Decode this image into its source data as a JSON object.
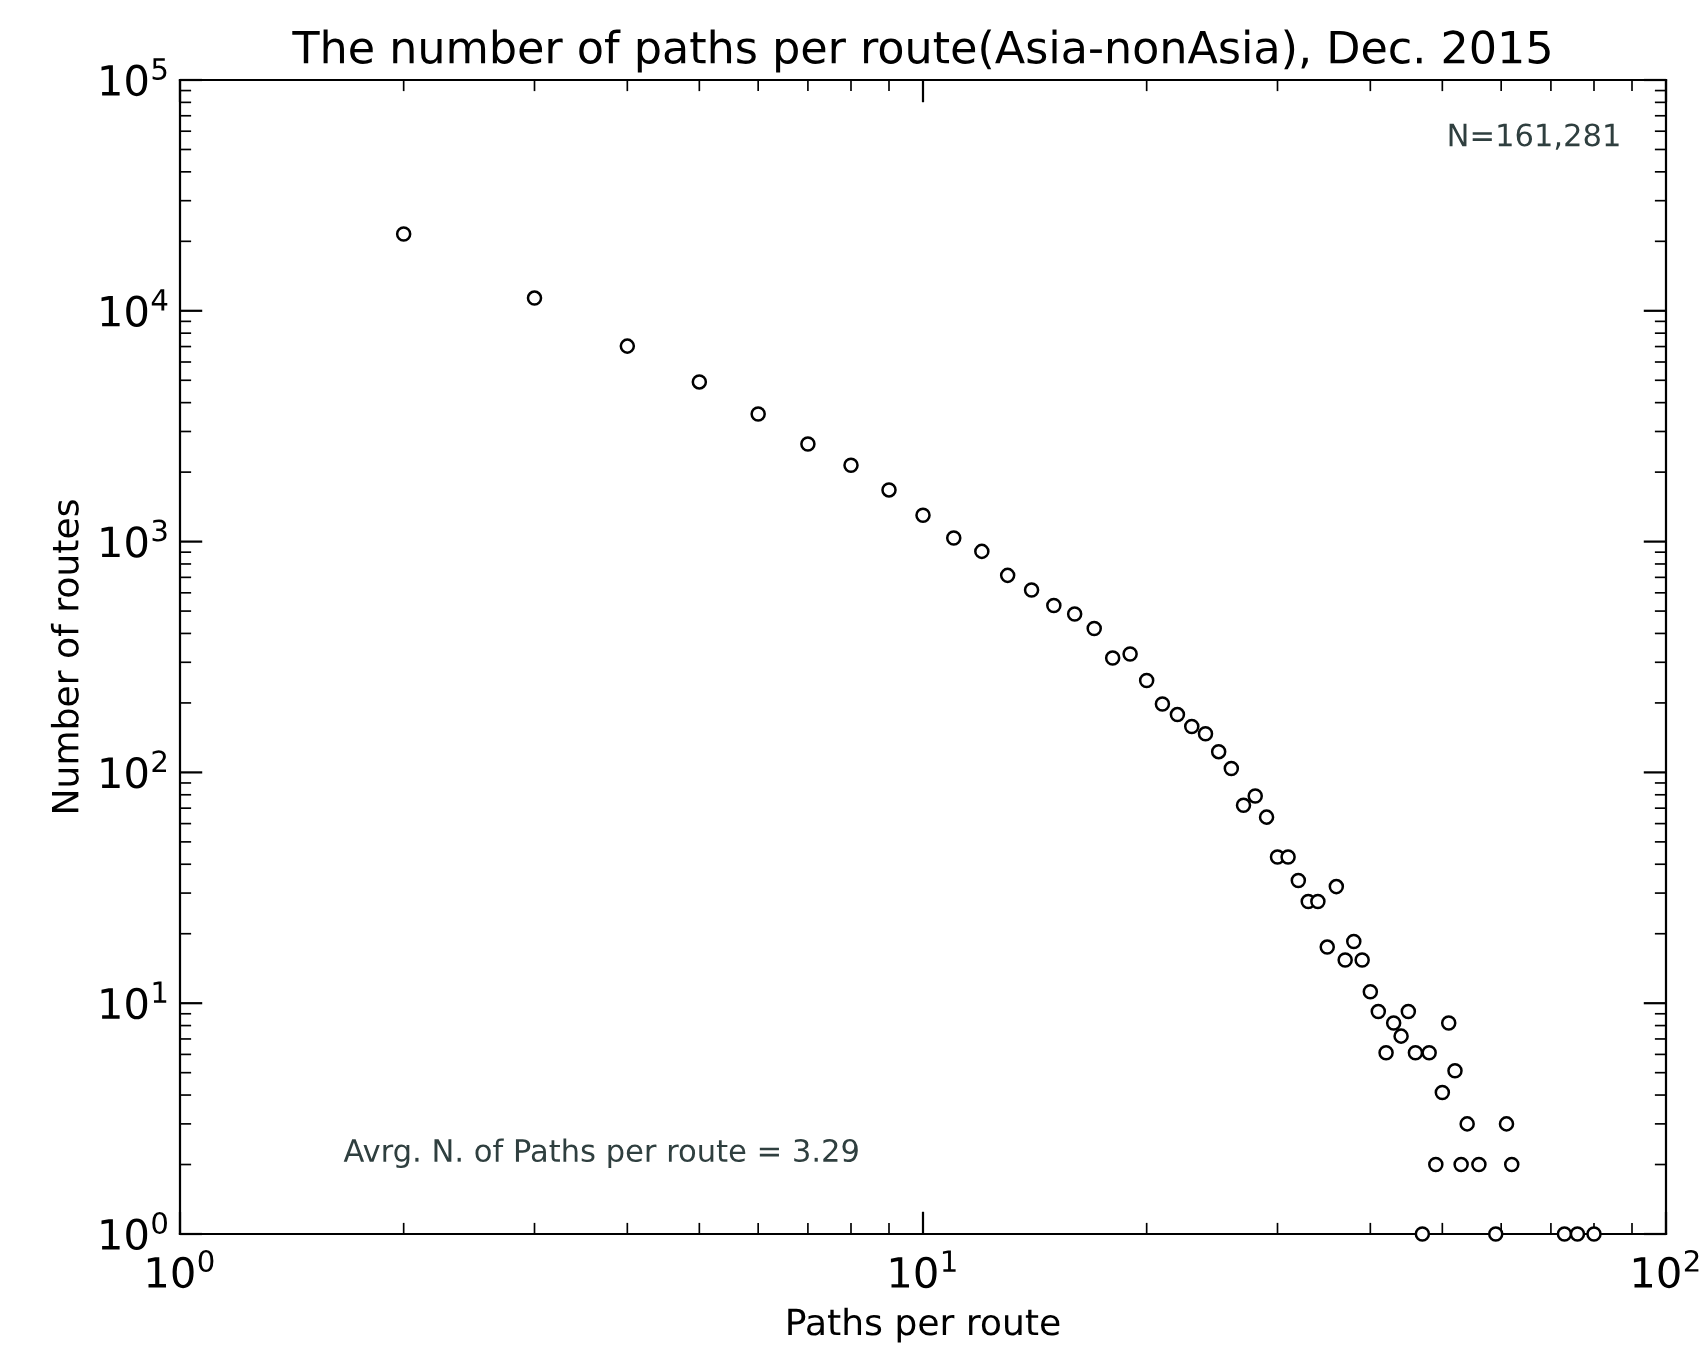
{
  "chart_data": {
    "type": "scatter",
    "title": "The number of paths per route(Asia-nonAsia), Dec. 2015",
    "xlabel": "Paths per route",
    "ylabel": "Number of routes",
    "log": "xy",
    "grid": false,
    "marker": "circle",
    "legend": false,
    "xlim": [
      1,
      100
    ],
    "xticks": [
      {
        "value": 1,
        "label": "10$^{0}$"
      },
      {
        "value": 10,
        "label": "10$^{1}$"
      },
      {
        "value": 100,
        "label": "10$^{2}$"
      }
    ],
    "ylim": [
      1,
      100000
    ],
    "yticks": [
      {
        "value": 1,
        "label": "10$^{0}$"
      },
      {
        "value": 10,
        "label": "10$^{1}$"
      },
      {
        "value": 100,
        "label": "10$^{2}$"
      },
      {
        "value": 1000,
        "label": "10$^{3}$"
      },
      {
        "value": 10000,
        "label": "10$^{4}$"
      },
      {
        "value": 100000,
        "label": "10$^{5}$"
      }
    ],
    "annotations": [
      "N=161,281",
      "Avrg. N. of Paths per route = 3.29"
    ],
    "series": [
      {
        "color": "#000000",
        "x": [
          2,
          3,
          4,
          5,
          6,
          7,
          8,
          9,
          10,
          11,
          12,
          13,
          14,
          15,
          16,
          17,
          18,
          19,
          20,
          21,
          22,
          23,
          24,
          25,
          26,
          27,
          28,
          29,
          30,
          31,
          32,
          33,
          34,
          35,
          36,
          37,
          38,
          39,
          40,
          41,
          42,
          43,
          44,
          45,
          46,
          47,
          48,
          49,
          50,
          51,
          52,
          53,
          54,
          56,
          59,
          61,
          62,
          73,
          76,
          80
        ],
        "values": [
          21500,
          11350,
          7030,
          4920,
          3575,
          2650,
          2140,
          1675,
          1300,
          1037,
          907,
          714,
          617,
          529,
          486,
          420,
          313,
          326,
          250,
          198,
          178,
          158,
          147,
          123,
          104,
          72,
          79,
          64,
          43,
          43,
          34,
          27.6,
          27.6,
          17.5,
          32,
          15.4,
          18.5,
          15.4,
          11.2,
          9.2,
          6.1,
          8.2,
          7.2,
          9.2,
          6.1,
          1,
          6.1,
          2,
          4.1,
          8.2,
          5.1,
          2,
          3,
          2,
          1,
          3,
          2,
          1,
          1,
          1
        ]
      }
    ]
  }
}
